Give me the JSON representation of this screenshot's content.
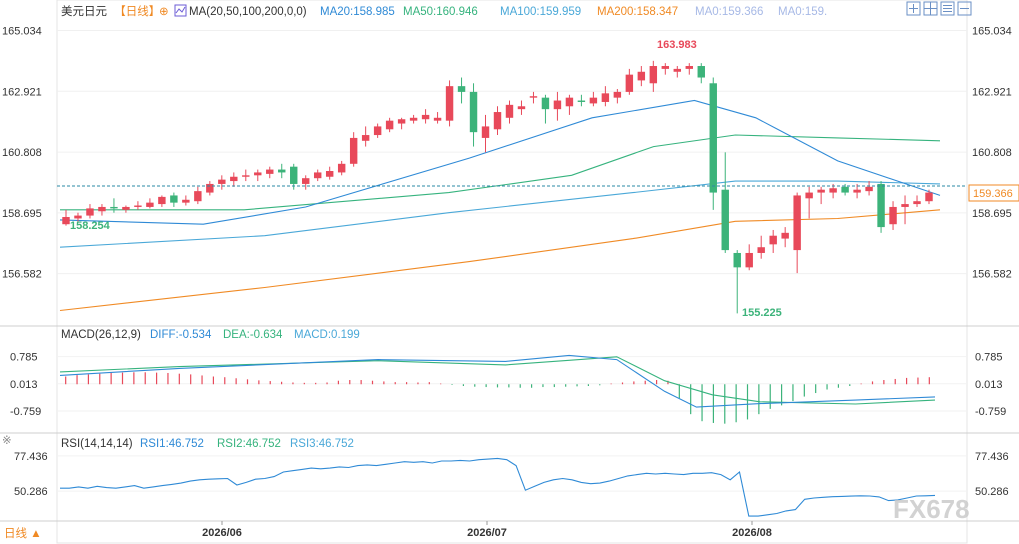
{
  "header": {
    "symbol": "美元日元",
    "period": "【日线】",
    "ma_label": "MA(20,50,100,200,0,0)",
    "ma_values": [
      {
        "text": "MA20:158.985",
        "color": "#2f8ad6"
      },
      {
        "text": "MA50:160.946",
        "color": "#36b37e"
      },
      {
        "text": "MA100:159.959",
        "color": "#4aa8d8"
      },
      {
        "text": "MA200:158.347",
        "color": "#f08a24"
      },
      {
        "text": "MA0:159.366",
        "color": "#a7b9e6"
      },
      {
        "text": "MA0:159.",
        "color": "#a7b9e6"
      }
    ]
  },
  "toolbar": {
    "icons": [
      "expand-icon",
      "grid-icon",
      "list-icon",
      "collapse-icon"
    ]
  },
  "macd": {
    "label": "MACD(26,12,9)",
    "diff": "DIFF:-0.534",
    "dea": "DEA:-0.634",
    "macd": "MACD:0.199"
  },
  "rsi": {
    "label": "RSI(14,14,14)",
    "rsi1": "RSI1:46.752",
    "rsi2": "RSI2:46.752",
    "rsi3": "RSI3:46.752"
  },
  "bottom": {
    "period_button": "日线 ▲"
  },
  "watermark": "FX678",
  "colors": {
    "up": "#e8495a",
    "down": "#3cb37a",
    "ma20": "#2f8ad6",
    "ma50": "#36b37e",
    "ma100": "#4aa8d8",
    "ma200": "#f08a24",
    "current": "#f08a24"
  },
  "chart_data": [
    {
      "type": "candlestick",
      "title": "美元日元 日线",
      "y_ticks": [
        "165.034",
        "162.921",
        "160.808",
        "158.695",
        "156.582"
      ],
      "ylim": [
        154.9,
        165.4
      ],
      "x_ticks": [
        "2026/06",
        "2026/07",
        "2026/08"
      ],
      "current_price": "159.366",
      "annotations": {
        "high": "163.983",
        "low": "155.225",
        "left": "158.254"
      },
      "candles": [
        [
          158.3,
          158.8,
          158.25,
          158.55
        ],
        [
          158.5,
          158.7,
          158.4,
          158.6
        ],
        [
          158.6,
          159.0,
          158.5,
          158.85
        ],
        [
          158.75,
          159.0,
          158.6,
          158.9
        ],
        [
          158.9,
          159.2,
          158.7,
          158.85
        ],
        [
          158.8,
          158.95,
          158.7,
          158.9
        ],
        [
          158.9,
          159.1,
          158.8,
          158.95
        ],
        [
          158.9,
          159.2,
          158.85,
          159.05
        ],
        [
          159.0,
          159.3,
          158.9,
          159.25
        ],
        [
          159.3,
          159.4,
          158.9,
          159.05
        ],
        [
          159.05,
          159.3,
          158.95,
          159.15
        ],
        [
          159.1,
          159.6,
          159.0,
          159.45
        ],
        [
          159.4,
          159.8,
          159.3,
          159.7
        ],
        [
          159.7,
          160.0,
          159.5,
          159.85
        ],
        [
          159.8,
          160.1,
          159.6,
          159.95
        ],
        [
          159.95,
          160.2,
          159.8,
          160.0
        ],
        [
          160.0,
          160.2,
          159.8,
          160.1
        ],
        [
          160.05,
          160.3,
          159.9,
          160.2
        ],
        [
          160.2,
          160.4,
          159.9,
          160.1
        ],
        [
          160.3,
          160.4,
          159.5,
          159.7
        ],
        [
          159.7,
          160.0,
          159.5,
          159.9
        ],
        [
          159.9,
          160.2,
          159.8,
          160.1
        ],
        [
          159.95,
          160.3,
          159.85,
          160.15
        ],
        [
          160.1,
          160.5,
          160.0,
          160.4
        ],
        [
          160.4,
          161.5,
          160.3,
          161.3
        ],
        [
          161.2,
          161.7,
          161.0,
          161.4
        ],
        [
          161.4,
          161.8,
          161.3,
          161.7
        ],
        [
          161.6,
          162.0,
          161.5,
          161.9
        ],
        [
          161.8,
          162.0,
          161.6,
          161.95
        ],
        [
          161.9,
          162.1,
          161.8,
          162.0
        ],
        [
          161.95,
          162.3,
          161.8,
          162.1
        ],
        [
          161.9,
          162.2,
          161.8,
          162.0
        ],
        [
          161.9,
          163.3,
          161.7,
          163.1
        ],
        [
          163.1,
          163.4,
          162.5,
          162.9
        ],
        [
          162.9,
          163.2,
          161.0,
          161.5
        ],
        [
          161.3,
          162.1,
          160.8,
          161.7
        ],
        [
          161.6,
          162.4,
          161.4,
          162.2
        ],
        [
          162.0,
          162.6,
          161.8,
          162.45
        ],
        [
          162.3,
          162.6,
          162.1,
          162.4
        ],
        [
          162.7,
          162.9,
          162.5,
          162.75
        ],
        [
          162.7,
          162.8,
          161.8,
          162.3
        ],
        [
          162.3,
          162.9,
          161.9,
          162.6
        ],
        [
          162.4,
          162.8,
          162.1,
          162.7
        ],
        [
          162.6,
          162.8,
          162.4,
          162.55
        ],
        [
          162.5,
          162.9,
          162.4,
          162.7
        ],
        [
          162.55,
          163.1,
          162.4,
          162.85
        ],
        [
          162.7,
          163.0,
          162.5,
          162.9
        ],
        [
          162.9,
          163.7,
          162.8,
          163.5
        ],
        [
          163.3,
          163.8,
          163.1,
          163.6
        ],
        [
          163.2,
          163.98,
          162.9,
          163.8
        ],
        [
          163.7,
          163.9,
          163.5,
          163.8
        ],
        [
          163.6,
          163.8,
          163.4,
          163.7
        ],
        [
          163.7,
          163.9,
          163.5,
          163.8
        ],
        [
          163.8,
          163.9,
          163.2,
          163.4
        ],
        [
          163.2,
          163.4,
          158.8,
          159.4
        ],
        [
          159.5,
          160.8,
          157.3,
          157.4
        ],
        [
          157.3,
          157.4,
          155.2,
          156.8
        ],
        [
          156.8,
          157.6,
          156.7,
          157.3
        ],
        [
          157.3,
          157.9,
          157.1,
          157.5
        ],
        [
          157.6,
          158.1,
          157.3,
          157.9
        ],
        [
          157.8,
          158.2,
          157.5,
          158.0
        ],
        [
          157.4,
          159.4,
          156.6,
          159.3
        ],
        [
          159.2,
          159.6,
          158.5,
          159.4
        ],
        [
          159.4,
          159.6,
          159.0,
          159.5
        ],
        [
          159.4,
          159.7,
          159.2,
          159.55
        ],
        [
          159.6,
          159.7,
          159.3,
          159.4
        ],
        [
          159.4,
          159.7,
          159.2,
          159.5
        ],
        [
          159.45,
          159.8,
          159.3,
          159.6
        ],
        [
          159.7,
          159.8,
          158.0,
          158.2
        ],
        [
          158.3,
          159.1,
          158.1,
          158.9
        ],
        [
          158.9,
          159.3,
          158.3,
          159.0
        ],
        [
          159.0,
          159.3,
          158.9,
          159.1
        ],
        [
          159.1,
          159.5,
          159.0,
          159.4
        ]
      ],
      "ma20": [
        [
          0,
          158.45
        ],
        [
          14,
          158.3
        ],
        [
          24,
          158.9
        ],
        [
          40,
          160.6
        ],
        [
          52,
          162.0
        ],
        [
          62,
          162.6
        ],
        [
          68,
          162.0
        ],
        [
          76,
          160.5
        ],
        [
          86,
          159.3
        ]
      ],
      "ma50": [
        [
          0,
          158.8
        ],
        [
          18,
          158.8
        ],
        [
          38,
          159.4
        ],
        [
          50,
          160.0
        ],
        [
          58,
          161.0
        ],
        [
          66,
          161.4
        ],
        [
          76,
          161.3
        ],
        [
          86,
          161.2
        ]
      ],
      "ma100": [
        [
          0,
          157.5
        ],
        [
          20,
          157.9
        ],
        [
          38,
          158.7
        ],
        [
          56,
          159.4
        ],
        [
          66,
          159.8
        ],
        [
          76,
          159.8
        ],
        [
          86,
          159.7
        ]
      ],
      "ma200": [
        [
          0,
          155.3
        ],
        [
          20,
          156.1
        ],
        [
          40,
          157.0
        ],
        [
          56,
          157.8
        ],
        [
          66,
          158.4
        ],
        [
          76,
          158.5
        ],
        [
          86,
          158.8
        ]
      ]
    },
    {
      "type": "macd",
      "y_ticks": [
        "0.785",
        "0.013",
        "-0.759"
      ],
      "ylim": [
        -1.3,
        1.2
      ],
      "hist": [
        0.22,
        0.26,
        0.28,
        0.3,
        0.32,
        0.33,
        0.34,
        0.34,
        0.33,
        0.32,
        0.3,
        0.28,
        0.25,
        0.22,
        0.2,
        0.17,
        0.14,
        0.11,
        0.09,
        0.07,
        0.05,
        0.04,
        0.04,
        0.05,
        0.1,
        0.12,
        0.12,
        0.1,
        0.08,
        0.06,
        0.06,
        0.05,
        0.06,
        0.02,
        -0.02,
        -0.05,
        -0.07,
        -0.08,
        -0.09,
        -0.09,
        -0.1,
        -0.1,
        -0.08,
        -0.08,
        -0.07,
        -0.06,
        -0.05,
        -0.03,
        0.02,
        0.05,
        0.08,
        0.1,
        0.12,
        0.1,
        -0.4,
        -0.85,
        -1.05,
        -1.1,
        -1.12,
        -1.08,
        -1.0,
        -0.85,
        -0.7,
        -0.6,
        -0.48,
        -0.35,
        -0.25,
        -0.15,
        -0.1,
        -0.05,
        0.02,
        0.08,
        0.12,
        0.15,
        0.18,
        0.19,
        0.2
      ],
      "diff": [
        [
          0,
          0.25
        ],
        [
          15,
          0.45
        ],
        [
          40,
          0.7
        ],
        [
          56,
          0.65
        ],
        [
          64,
          0.82
        ],
        [
          70,
          0.7
        ],
        [
          76,
          -0.2
        ],
        [
          80,
          -0.65
        ],
        [
          88,
          -0.55
        ],
        [
          100,
          -0.45
        ],
        [
          110,
          -0.36
        ]
      ],
      "dea": [
        [
          0,
          0.35
        ],
        [
          15,
          0.5
        ],
        [
          40,
          0.67
        ],
        [
          56,
          0.55
        ],
        [
          64,
          0.68
        ],
        [
          70,
          0.78
        ],
        [
          76,
          0.1
        ],
        [
          82,
          -0.3
        ],
        [
          88,
          -0.5
        ],
        [
          100,
          -0.56
        ],
        [
          110,
          -0.45
        ]
      ]
    },
    {
      "type": "line",
      "y_ticks": [
        "77.436",
        "50.286"
      ],
      "ylim": [
        28,
        82
      ],
      "rsi": [
        52.5,
        52.5,
        53.5,
        52.5,
        54,
        53,
        52.5,
        53.5,
        54.5,
        52.5,
        53.5,
        54.5,
        55.5,
        56.5,
        58,
        59,
        59.5,
        59.8,
        60,
        55,
        57,
        59.5,
        60,
        61.5,
        65,
        66,
        67,
        68,
        67.5,
        68,
        69,
        68.5,
        70,
        70.5,
        70,
        71,
        72,
        73,
        72.5,
        73,
        72,
        73.5,
        73.5,
        74,
        73.5,
        74.5,
        75,
        75.5,
        74.5,
        70,
        51,
        54,
        57,
        59,
        60,
        59,
        57,
        56,
        56.5,
        58,
        60,
        62,
        63,
        64,
        63.5,
        64,
        63.5,
        63,
        64,
        64,
        64.5,
        63,
        59,
        65,
        31,
        31,
        32,
        33,
        35,
        36,
        44,
        45,
        45.5,
        46,
        46.2,
        46.4,
        46.7,
        46.5,
        45.8,
        43,
        43.5,
        45,
        46.5,
        46.7,
        47
      ]
    }
  ]
}
